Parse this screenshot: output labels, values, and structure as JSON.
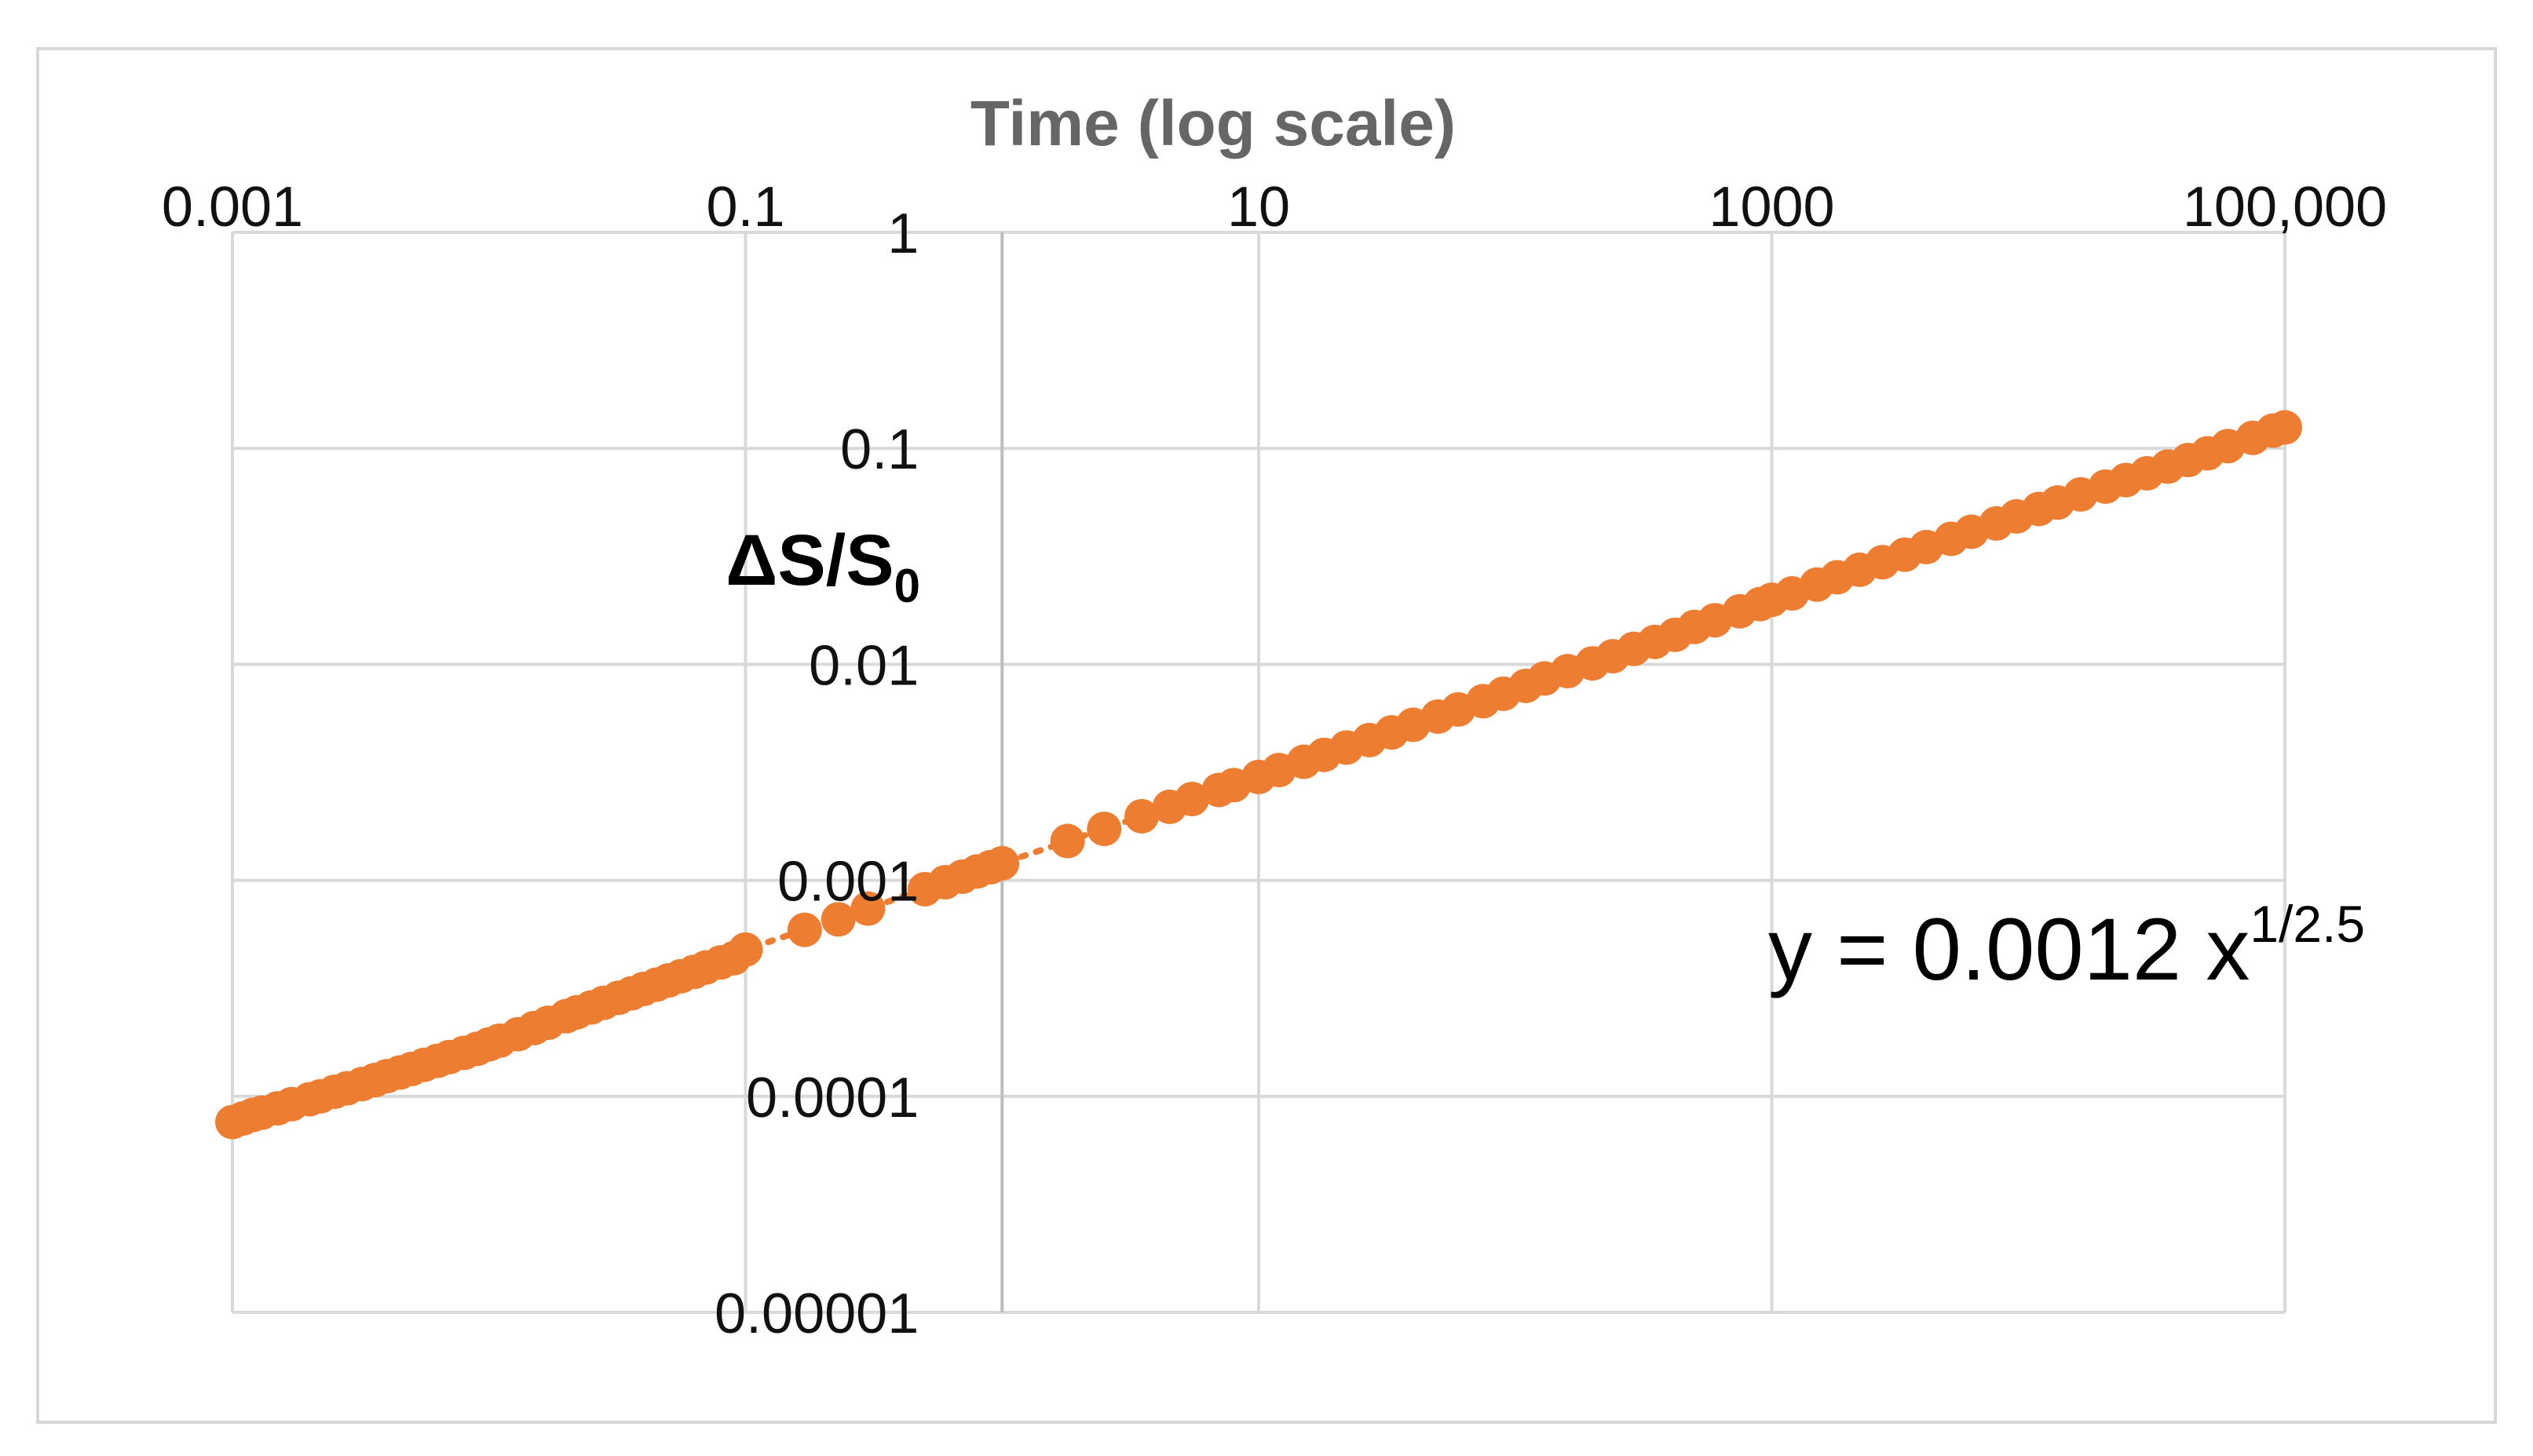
{
  "chart_data": {
    "type": "scatter",
    "title": "",
    "xlabel": "Time (log scale)",
    "ylabel_main": "ΔS/S",
    "ylabel_sub": "0",
    "x_scale": "log",
    "y_scale": "log",
    "xlim": [
      0.001,
      100000
    ],
    "ylim": [
      1e-05,
      1
    ],
    "x_ticks": [
      {
        "value": 0.001,
        "label": "0.001"
      },
      {
        "value": 0.1,
        "label": "0.1"
      },
      {
        "value": 10,
        "label": "10"
      },
      {
        "value": 1000,
        "label": "1000"
      },
      {
        "value": 100000,
        "label": "100,000"
      }
    ],
    "y_ticks": [
      {
        "value": 1,
        "label": "1"
      },
      {
        "value": 0.1,
        "label": "0.1"
      },
      {
        "value": 0.01,
        "label": "0.01"
      },
      {
        "value": 0.001,
        "label": "0.001"
      },
      {
        "value": 0.0001,
        "label": "0.0001"
      },
      {
        "value": 1e-05,
        "label": "0.00001"
      }
    ],
    "y_axis_crosses_x": 1,
    "x_axis_position": "top",
    "grid": true,
    "marker_color": "#ED7D31",
    "trendline": {
      "coefficient": 0.0012,
      "exponent": 0.4,
      "style": "dotted",
      "color": "#ED7D31"
    },
    "annotation": {
      "text": "y = 0.0012 x",
      "superscript": "1/2.5"
    },
    "series": [
      {
        "x": [
          0.001,
          0.0011,
          0.0012,
          0.0013,
          0.0015,
          0.0017,
          0.002,
          0.0022,
          0.0025,
          0.0028,
          0.0032,
          0.0036,
          0.004,
          0.0045,
          0.005,
          0.0056,
          0.0063,
          0.007,
          0.008,
          0.009,
          0.01,
          0.011,
          0.013,
          0.015,
          0.017,
          0.02,
          0.022,
          0.025,
          0.028,
          0.032,
          0.036,
          0.04,
          0.045,
          0.05,
          0.056,
          0.063,
          0.07,
          0.08,
          0.09,
          0.1,
          0.17,
          0.23,
          0.3,
          0.5,
          0.6,
          0.7,
          0.8,
          0.9,
          1.0,
          1.8,
          2.5,
          3.5,
          4.5,
          5.5,
          7,
          8,
          10,
          12,
          15,
          18,
          22,
          27,
          33,
          40,
          50,
          60,
          75,
          90,
          110,
          130,
          160,
          200,
          240,
          290,
          350,
          420,
          500,
          600,
          750,
          900,
          1000,
          1200,
          1500,
          1800,
          2200,
          2700,
          3300,
          4000,
          5000,
          6000,
          7500,
          9000,
          11000,
          13000,
          16000,
          20000,
          24000,
          29000,
          35000,
          42000,
          50000,
          60000,
          75000,
          90000,
          100000
        ],
        "y": [
          7.6e-05,
          7.9e-05,
          8.2e-05,
          8.4e-05,
          8.8e-05,
          9.2e-05,
          9.7e-05,
          0.0001,
          0.000105,
          0.000109,
          0.000114,
          0.000119,
          0.000124,
          0.000129,
          0.000134,
          0.00014,
          0.000146,
          0.000152,
          0.000159,
          0.000166,
          0.000174,
          0.000181,
          0.000194,
          0.000207,
          0.000219,
          0.000235,
          0.000245,
          0.000258,
          0.000271,
          0.000286,
          0.0003,
          0.000314,
          0.000329,
          0.000344,
          0.00036,
          0.000377,
          0.000395,
          0.000417,
          0.000436,
          0.000478,
          0.00059,
          0.00066,
          0.00074,
          0.00091,
          0.00098,
          0.00104,
          0.0011,
          0.00115,
          0.0012,
          0.00152,
          0.00173,
          0.00198,
          0.00219,
          0.00238,
          0.00262,
          0.00276,
          0.00301,
          0.00324,
          0.00354,
          0.00381,
          0.00412,
          0.00446,
          0.00484,
          0.00525,
          0.00573,
          0.00618,
          0.00675,
          0.00731,
          0.00795,
          0.0086,
          0.0093,
          0.0101,
          0.0109,
          0.0118,
          0.0127,
          0.0137,
          0.0149,
          0.016,
          0.0176,
          0.019,
          0.0199,
          0.0213,
          0.0234,
          0.0253,
          0.0274,
          0.0297,
          0.0322,
          0.0349,
          0.0381,
          0.0411,
          0.0449,
          0.0484,
          0.0524,
          0.0561,
          0.0612,
          0.0665,
          0.0713,
          0.0766,
          0.0823,
          0.0883,
          0.0948,
          0.1024,
          0.1118,
          0.1208,
          0.125
        ]
      }
    ]
  }
}
